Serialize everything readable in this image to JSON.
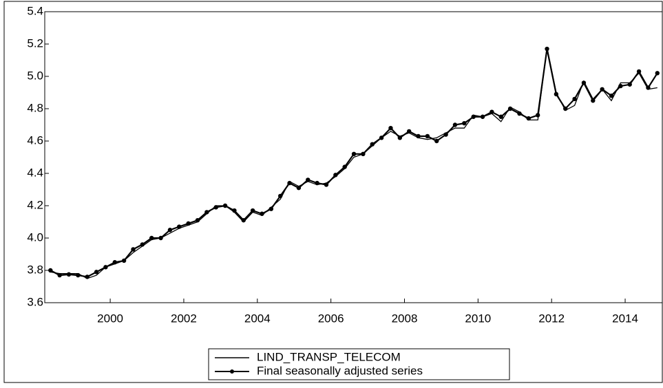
{
  "chart_data": {
    "type": "line",
    "x": [
      1998.375,
      1998.625,
      1998.875,
      1999.125,
      1999.375,
      1999.625,
      1999.875,
      2000.125,
      2000.375,
      2000.625,
      2000.875,
      2001.125,
      2001.375,
      2001.625,
      2001.875,
      2002.125,
      2002.375,
      2002.625,
      2002.875,
      2003.125,
      2003.375,
      2003.625,
      2003.875,
      2004.125,
      2004.375,
      2004.625,
      2004.875,
      2005.125,
      2005.375,
      2005.625,
      2005.875,
      2006.125,
      2006.375,
      2006.625,
      2006.875,
      2007.125,
      2007.375,
      2007.625,
      2007.875,
      2008.125,
      2008.375,
      2008.625,
      2008.875,
      2009.125,
      2009.375,
      2009.625,
      2009.875,
      2010.125,
      2010.375,
      2010.625,
      2010.875,
      2011.125,
      2011.375,
      2011.625,
      2011.875,
      2012.125,
      2012.375,
      2012.625,
      2012.875,
      2013.125,
      2013.375,
      2013.625,
      2013.875,
      2014.125,
      2014.375,
      2014.625,
      2014.875
    ],
    "series": [
      {
        "name": "LIND_TRANSP_TELECOM",
        "color": "#000000",
        "marker": false,
        "values": [
          3.79,
          3.78,
          3.78,
          3.78,
          3.75,
          3.77,
          3.82,
          3.84,
          3.86,
          3.91,
          3.95,
          3.99,
          4.0,
          4.03,
          4.06,
          4.08,
          4.1,
          4.15,
          4.2,
          4.2,
          4.16,
          4.1,
          4.16,
          4.14,
          4.19,
          4.24,
          4.35,
          4.32,
          4.35,
          4.33,
          4.34,
          4.38,
          4.43,
          4.5,
          4.52,
          4.57,
          4.62,
          4.66,
          4.63,
          4.65,
          4.62,
          4.61,
          4.62,
          4.65,
          4.68,
          4.68,
          4.76,
          4.75,
          4.77,
          4.72,
          4.81,
          4.78,
          4.73,
          4.73,
          5.18,
          4.9,
          4.79,
          4.82,
          4.97,
          4.86,
          4.92,
          4.85,
          4.96,
          4.96,
          5.02,
          4.92,
          4.93
        ]
      },
      {
        "name": "Final seasonally adjusted series",
        "color": "#000000",
        "marker": true,
        "values": [
          3.8,
          3.77,
          3.775,
          3.77,
          3.76,
          3.79,
          3.82,
          3.85,
          3.86,
          3.93,
          3.96,
          4.0,
          4.0,
          4.05,
          4.07,
          4.09,
          4.11,
          4.16,
          4.19,
          4.2,
          4.17,
          4.11,
          4.17,
          4.15,
          4.18,
          4.26,
          4.34,
          4.31,
          4.36,
          4.34,
          4.33,
          4.39,
          4.44,
          4.52,
          4.52,
          4.58,
          4.62,
          4.68,
          4.62,
          4.66,
          4.63,
          4.63,
          4.6,
          4.64,
          4.7,
          4.71,
          4.75,
          4.75,
          4.78,
          4.75,
          4.8,
          4.77,
          4.74,
          4.76,
          5.17,
          4.89,
          4.8,
          4.86,
          4.96,
          4.85,
          4.92,
          4.88,
          4.94,
          4.95,
          5.03,
          4.93,
          5.02
        ]
      }
    ],
    "xlim": [
      1998.22,
      2015.01
    ],
    "xticks": [
      2000,
      2002,
      2004,
      2006,
      2008,
      2010,
      2012,
      2014
    ],
    "ylim": [
      3.6,
      5.4
    ],
    "yticks": [
      3.6,
      3.8,
      {
        "value": 4,
        "label": "4.0"
      },
      4.2,
      4.4,
      4.6,
      4.8,
      {
        "value": 5,
        "label": "5.0"
      },
      5.2,
      5.4
    ]
  }
}
